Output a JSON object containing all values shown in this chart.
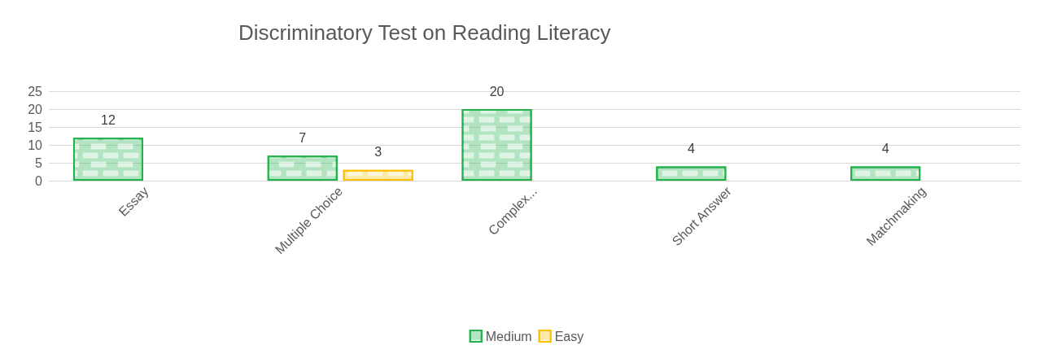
{
  "chart_data": {
    "type": "bar",
    "title": "Discriminatory Test on Reading Literacy",
    "categories": [
      "Essay",
      "Multiple Choice",
      "Complex...",
      "Short Answer",
      "Matchmaking"
    ],
    "series": [
      {
        "name": "Medium",
        "color": "#22b14c",
        "values": [
          12,
          7,
          20,
          4,
          4
        ]
      },
      {
        "name": "Easy",
        "color": "#ffc000",
        "values": [
          null,
          3,
          null,
          null,
          null
        ]
      }
    ],
    "ylim": [
      0,
      25
    ],
    "yticks": [
      0,
      5,
      10,
      15,
      20,
      25
    ],
    "grid": "y",
    "legend": "bottom",
    "data_labels": true
  }
}
